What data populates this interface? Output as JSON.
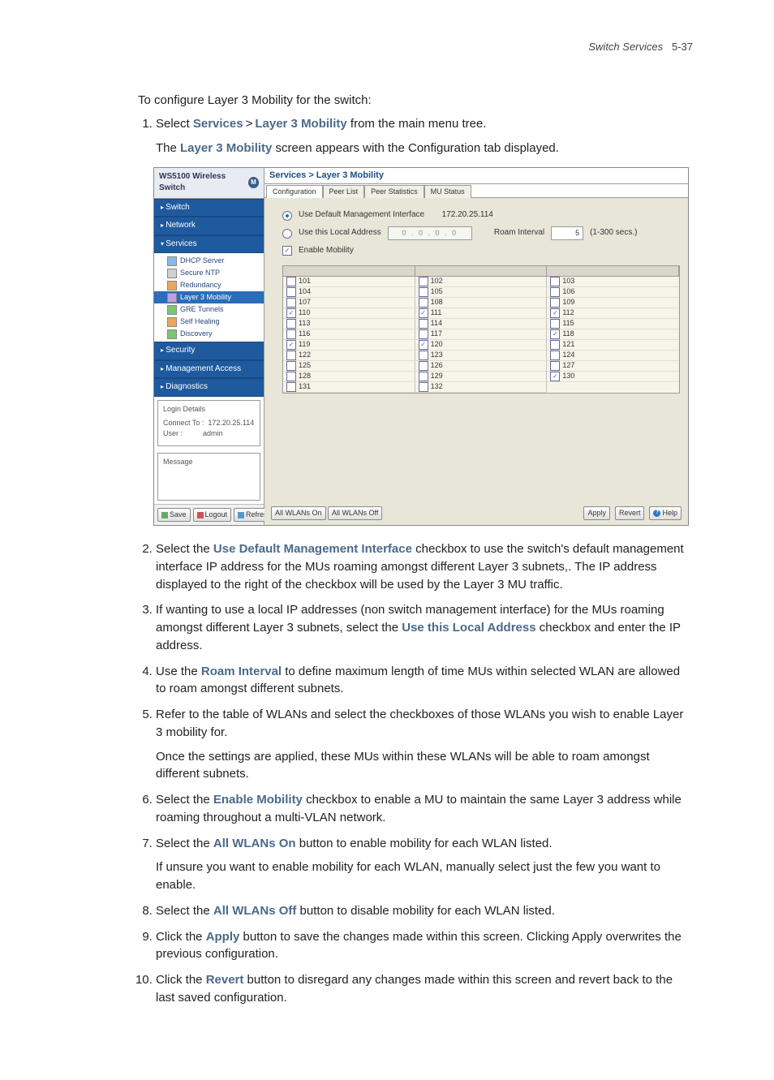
{
  "page": {
    "header_section": "Switch Services",
    "header_page": "5-37",
    "intro": "To configure Layer 3 Mobility for the switch:",
    "steps": {
      "s1_a": "Select ",
      "s1_services": "Services",
      "s1_gt": ">",
      "s1_l3m": "Layer 3 Mobility",
      "s1_b": " from the main menu tree.",
      "s1_sub_a": "The ",
      "s1_sub_bold": "Layer 3 Mobility",
      "s1_sub_b": " screen appears with the Configuration tab displayed.",
      "s2_a": "Select the ",
      "s2_bold": "Use Default Management Interface",
      "s2_b": " checkbox to use the switch's default management interface IP address for the MUs roaming amongst different Layer 3 subnets,. The IP address displayed to the right of the checkbox will be used by the Layer 3 MU traffic.",
      "s3_a": "If wanting to use a local IP addresses (non switch management interface) for the MUs roaming amongst different Layer 3 subnets, select the ",
      "s3_bold": "Use this Local Address",
      "s3_b": " checkbox and enter the IP address.",
      "s4_a": "Use the ",
      "s4_bold": "Roam Interval",
      "s4_b": " to define maximum length of time MUs within selected WLAN are allowed to roam amongst different subnets.",
      "s5": "Refer to the table of WLANs and select the checkboxes of those WLANs you wish to enable Layer 3 mobility for.",
      "s5_sub": "Once the settings are applied, these MUs within these WLANs will be able to roam amongst different subnets.",
      "s6_a": "Select the ",
      "s6_bold": "Enable Mobility",
      "s6_b": " checkbox to enable a MU to maintain the same Layer 3 address while roaming throughout a multi-VLAN network.",
      "s7_a": "Select the ",
      "s7_bold": "All WLANs On",
      "s7_b": " button to enable mobility for each WLAN listed.",
      "s7_sub": "If unsure you want to enable mobility for each WLAN, manually select just the few you want to enable.",
      "s8_a": "Select the ",
      "s8_bold": "All WLANs Off",
      "s8_b": " button to disable mobility for each WLAN listed.",
      "s9_a": "Click the ",
      "s9_bold": "Apply",
      "s9_b": " button to save the changes made within this screen. Clicking Apply overwrites the previous configuration.",
      "s10_a": "Click the ",
      "s10_bold": "Revert",
      "s10_b": " button to disregard any changes made within this screen and revert back to the last saved configuration."
    }
  },
  "shot": {
    "title_prefix": "WS5100",
    "title_rest": " Wireless Switch",
    "crumb": "Services > Layer 3 Mobility",
    "tabs": [
      "Configuration",
      "Peer List",
      "Peer Statistics",
      "MU Status"
    ],
    "nav": {
      "switch": "Switch",
      "network": "Network",
      "services": "Services",
      "security": "Security",
      "mgmt": "Management Access",
      "diag": "Diagnostics"
    },
    "subnav": [
      "DHCP Server",
      "Secure NTP",
      "Redundancy",
      "Layer 3 Mobility",
      "GRE Tunnels",
      "Self Healing",
      "Discovery"
    ],
    "login": {
      "title": "Login Details",
      "connect_label": "Connect To :",
      "connect_val": "172.20.25.114",
      "user_label": "User :",
      "user_val": "admin"
    },
    "msg_title": "Message",
    "sb_buttons": {
      "save": "Save",
      "logout": "Logout",
      "refresh": "Refresh"
    },
    "cfg": {
      "use_default": "Use Default Management Interface",
      "ip": "172.20.25.114",
      "use_local": "Use this Local Address",
      "ip_ph": "0  .  0  .  0  .  0",
      "roam_label": "Roam Interval",
      "roam_val": "5",
      "roam_range": "(1-300 secs.)",
      "enable_mob": "Enable Mobility"
    },
    "wlans": [
      {
        "id": "101",
        "on": false
      },
      {
        "id": "102",
        "on": false
      },
      {
        "id": "103",
        "on": false
      },
      {
        "id": "104",
        "on": false
      },
      {
        "id": "105",
        "on": false
      },
      {
        "id": "106",
        "on": false
      },
      {
        "id": "107",
        "on": false
      },
      {
        "id": "108",
        "on": false
      },
      {
        "id": "109",
        "on": false
      },
      {
        "id": "110",
        "on": true
      },
      {
        "id": "111",
        "on": true
      },
      {
        "id": "112",
        "on": true
      },
      {
        "id": "113",
        "on": false
      },
      {
        "id": "114",
        "on": false
      },
      {
        "id": "115",
        "on": false
      },
      {
        "id": "116",
        "on": false
      },
      {
        "id": "117",
        "on": false
      },
      {
        "id": "118",
        "on": true
      },
      {
        "id": "119",
        "on": true
      },
      {
        "id": "120",
        "on": true
      },
      {
        "id": "121",
        "on": false
      },
      {
        "id": "122",
        "on": false
      },
      {
        "id": "123",
        "on": false
      },
      {
        "id": "124",
        "on": false
      },
      {
        "id": "125",
        "on": false
      },
      {
        "id": "126",
        "on": false
      },
      {
        "id": "127",
        "on": false
      },
      {
        "id": "128",
        "on": false
      },
      {
        "id": "129",
        "on": false
      },
      {
        "id": "130",
        "on": true
      },
      {
        "id": "131",
        "on": false
      },
      {
        "id": "132",
        "on": false
      }
    ],
    "buttons": {
      "all_on": "All WLANs On",
      "all_off": "All WLANs Off",
      "apply": "Apply",
      "revert": "Revert",
      "help": "Help"
    }
  }
}
